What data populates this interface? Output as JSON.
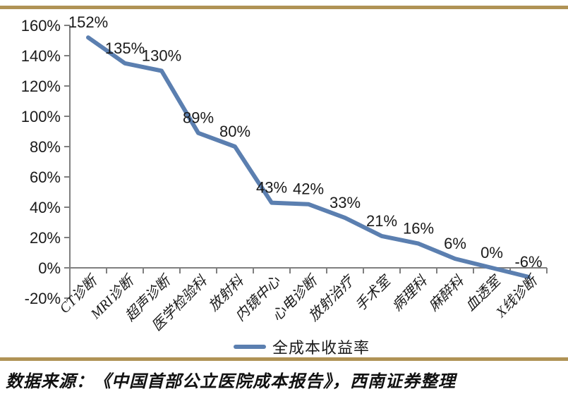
{
  "chart_data": {
    "type": "line",
    "title": "",
    "series_name": "全成本收益率",
    "categories": [
      "CT诊断",
      "MRI诊断",
      "超声诊断",
      "医学检验科",
      "放射科",
      "内镜中心",
      "心电诊断",
      "放射治疗",
      "手术室",
      "病理科",
      "麻醉科",
      "血透室",
      "X线诊断"
    ],
    "values": [
      152,
      135,
      130,
      89,
      80,
      43,
      42,
      33,
      21,
      16,
      6,
      0,
      -6
    ],
    "data_labels": [
      "152%",
      "135%",
      "130%",
      "89%",
      "80%",
      "43%",
      "42%",
      "33%",
      "21%",
      "16%",
      "6%",
      "0%",
      "-6%"
    ],
    "y_tick_labels": [
      "160%",
      "140%",
      "120%",
      "100%",
      "80%",
      "60%",
      "40%",
      "20%",
      "0%",
      "-20%"
    ],
    "ylim": [
      -20,
      160
    ],
    "y_step": 20,
    "xlabel": "",
    "ylabel": "",
    "grid": false,
    "legend_position": "bottom",
    "colors": {
      "line": "#5b7fb0",
      "accent_rule": "#b09355",
      "axis": "#7f7f7f",
      "text": "#1a1a1a"
    }
  },
  "source_note": "数据来源：《中国首部公立医院成本报告》，西南证券整理"
}
